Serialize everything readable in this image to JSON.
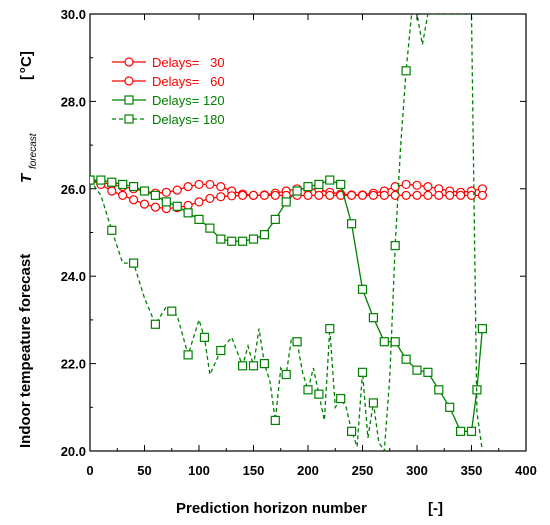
{
  "chart_data": {
    "type": "line",
    "xlabel": "Prediction horizon number",
    "xunit": "[-]",
    "ylabel": "Indoor tempeature forecast",
    "ylabel_symbol": "T",
    "ylabel_subscript": "forecast",
    "yunit_open": "[",
    "yunit_sup": "o",
    "yunit_rest": "C]",
    "xlim": [
      0,
      400
    ],
    "ylim": [
      20,
      30
    ],
    "x_ticks": [
      0,
      50,
      100,
      150,
      200,
      250,
      300,
      350,
      400
    ],
    "x_tick_labels": [
      "0",
      "50",
      "100",
      "150",
      "200",
      "250",
      "300",
      "350",
      "400"
    ],
    "y_ticks": [
      20,
      22,
      24,
      26,
      28,
      30
    ],
    "y_tick_labels": [
      "20.0",
      "22.0",
      "24.0",
      "26.0",
      "28.0",
      "30.0"
    ],
    "grid": false,
    "legend_position": "top-left",
    "series": [
      {
        "name": "Delays=   30",
        "color": "#ff0000",
        "marker": "circle",
        "dash": "solid",
        "x": [
          0,
          10,
          20,
          30,
          40,
          50,
          60,
          70,
          80,
          90,
          100,
          110,
          120,
          130,
          140,
          150,
          160,
          170,
          180,
          190,
          200,
          210,
          220,
          230,
          240,
          250,
          260,
          270,
          280,
          290,
          300,
          310,
          320,
          330,
          340,
          350,
          360
        ],
        "y": [
          26.2,
          26.15,
          26.1,
          26.05,
          26.0,
          25.95,
          25.9,
          25.92,
          25.97,
          26.05,
          26.1,
          26.1,
          26.05,
          25.95,
          25.88,
          25.85,
          25.86,
          25.9,
          25.95,
          26.0,
          26.0,
          25.98,
          25.92,
          25.88,
          25.86,
          25.86,
          25.9,
          25.95,
          26.05,
          26.1,
          26.08,
          26.05,
          26.0,
          25.95,
          25.92,
          25.95,
          26.0
        ]
      },
      {
        "name": "Delays=   60",
        "color": "#ff0000",
        "marker": "circle",
        "dash": "solid",
        "x": [
          0,
          10,
          20,
          30,
          40,
          50,
          60,
          70,
          80,
          90,
          100,
          110,
          120,
          130,
          140,
          150,
          160,
          170,
          180,
          190,
          200,
          210,
          220,
          230,
          240,
          250,
          260,
          270,
          280,
          290,
          300,
          310,
          320,
          330,
          340,
          350,
          360
        ],
        "y": [
          26.2,
          26.1,
          25.95,
          25.85,
          25.75,
          25.65,
          25.58,
          25.55,
          25.57,
          25.62,
          25.7,
          25.78,
          25.82,
          25.84,
          25.85,
          25.85,
          25.85,
          25.85,
          25.85,
          25.85,
          25.85,
          25.85,
          25.85,
          25.85,
          25.85,
          25.85,
          25.85,
          25.85,
          25.85,
          25.85,
          25.85,
          25.85,
          25.85,
          25.85,
          25.85,
          25.85,
          25.85
        ]
      },
      {
        "name": "Delays= 120",
        "color": "#008000",
        "marker": "square",
        "dash": "solid",
        "x": [
          0,
          10,
          20,
          30,
          40,
          50,
          60,
          70,
          80,
          90,
          100,
          110,
          120,
          130,
          140,
          150,
          160,
          170,
          180,
          190,
          200,
          210,
          220,
          230,
          240,
          250,
          260,
          270,
          280,
          290,
          300,
          310,
          320,
          330,
          340,
          350,
          355,
          360
        ],
        "y": [
          26.2,
          26.2,
          26.15,
          26.1,
          26.05,
          25.95,
          25.85,
          25.7,
          25.6,
          25.45,
          25.3,
          25.1,
          24.85,
          24.8,
          24.8,
          24.85,
          24.95,
          25.3,
          25.7,
          25.95,
          26.05,
          26.1,
          26.2,
          26.1,
          25.2,
          23.7,
          23.05,
          22.5,
          22.5,
          22.1,
          21.85,
          21.8,
          21.4,
          21.0,
          20.45,
          20.45,
          21.4,
          22.8
        ]
      },
      {
        "name": "Delays= 180",
        "color": "#008000",
        "marker": "square",
        "dash": "dashed",
        "x": [
          0,
          10,
          20,
          30,
          40,
          50,
          60,
          70,
          75,
          80,
          90,
          100,
          105,
          110,
          120,
          130,
          140,
          145,
          150,
          155,
          160,
          165,
          170,
          175,
          180,
          185,
          190,
          195,
          200,
          205,
          210,
          215,
          220,
          225,
          230,
          235,
          240,
          245,
          250,
          255,
          260,
          265,
          270,
          275,
          280,
          285,
          290,
          295,
          300,
          305,
          310,
          315,
          320,
          325,
          330,
          335,
          340,
          345,
          350,
          355,
          360
        ],
        "y": [
          26.2,
          25.85,
          25.05,
          24.3,
          24.3,
          23.5,
          22.9,
          23.3,
          23.2,
          23.1,
          22.2,
          23.0,
          22.6,
          21.75,
          22.3,
          22.6,
          21.95,
          22.4,
          21.95,
          22.8,
          22.0,
          21.6,
          20.7,
          21.9,
          21.75,
          22.6,
          22.5,
          21.8,
          21.4,
          21.9,
          21.3,
          20.7,
          22.8,
          21.0,
          21.2,
          21.0,
          20.45,
          20.1,
          21.8,
          20.3,
          21.1,
          20.2,
          20.0,
          21.7,
          24.7,
          27.0,
          28.7,
          30.0,
          30.0,
          29.3,
          30.0,
          30.0,
          30.0,
          30.0,
          30.0,
          30.0,
          30.0,
          30.0,
          30.0,
          20.9,
          20.0
        ]
      }
    ]
  }
}
